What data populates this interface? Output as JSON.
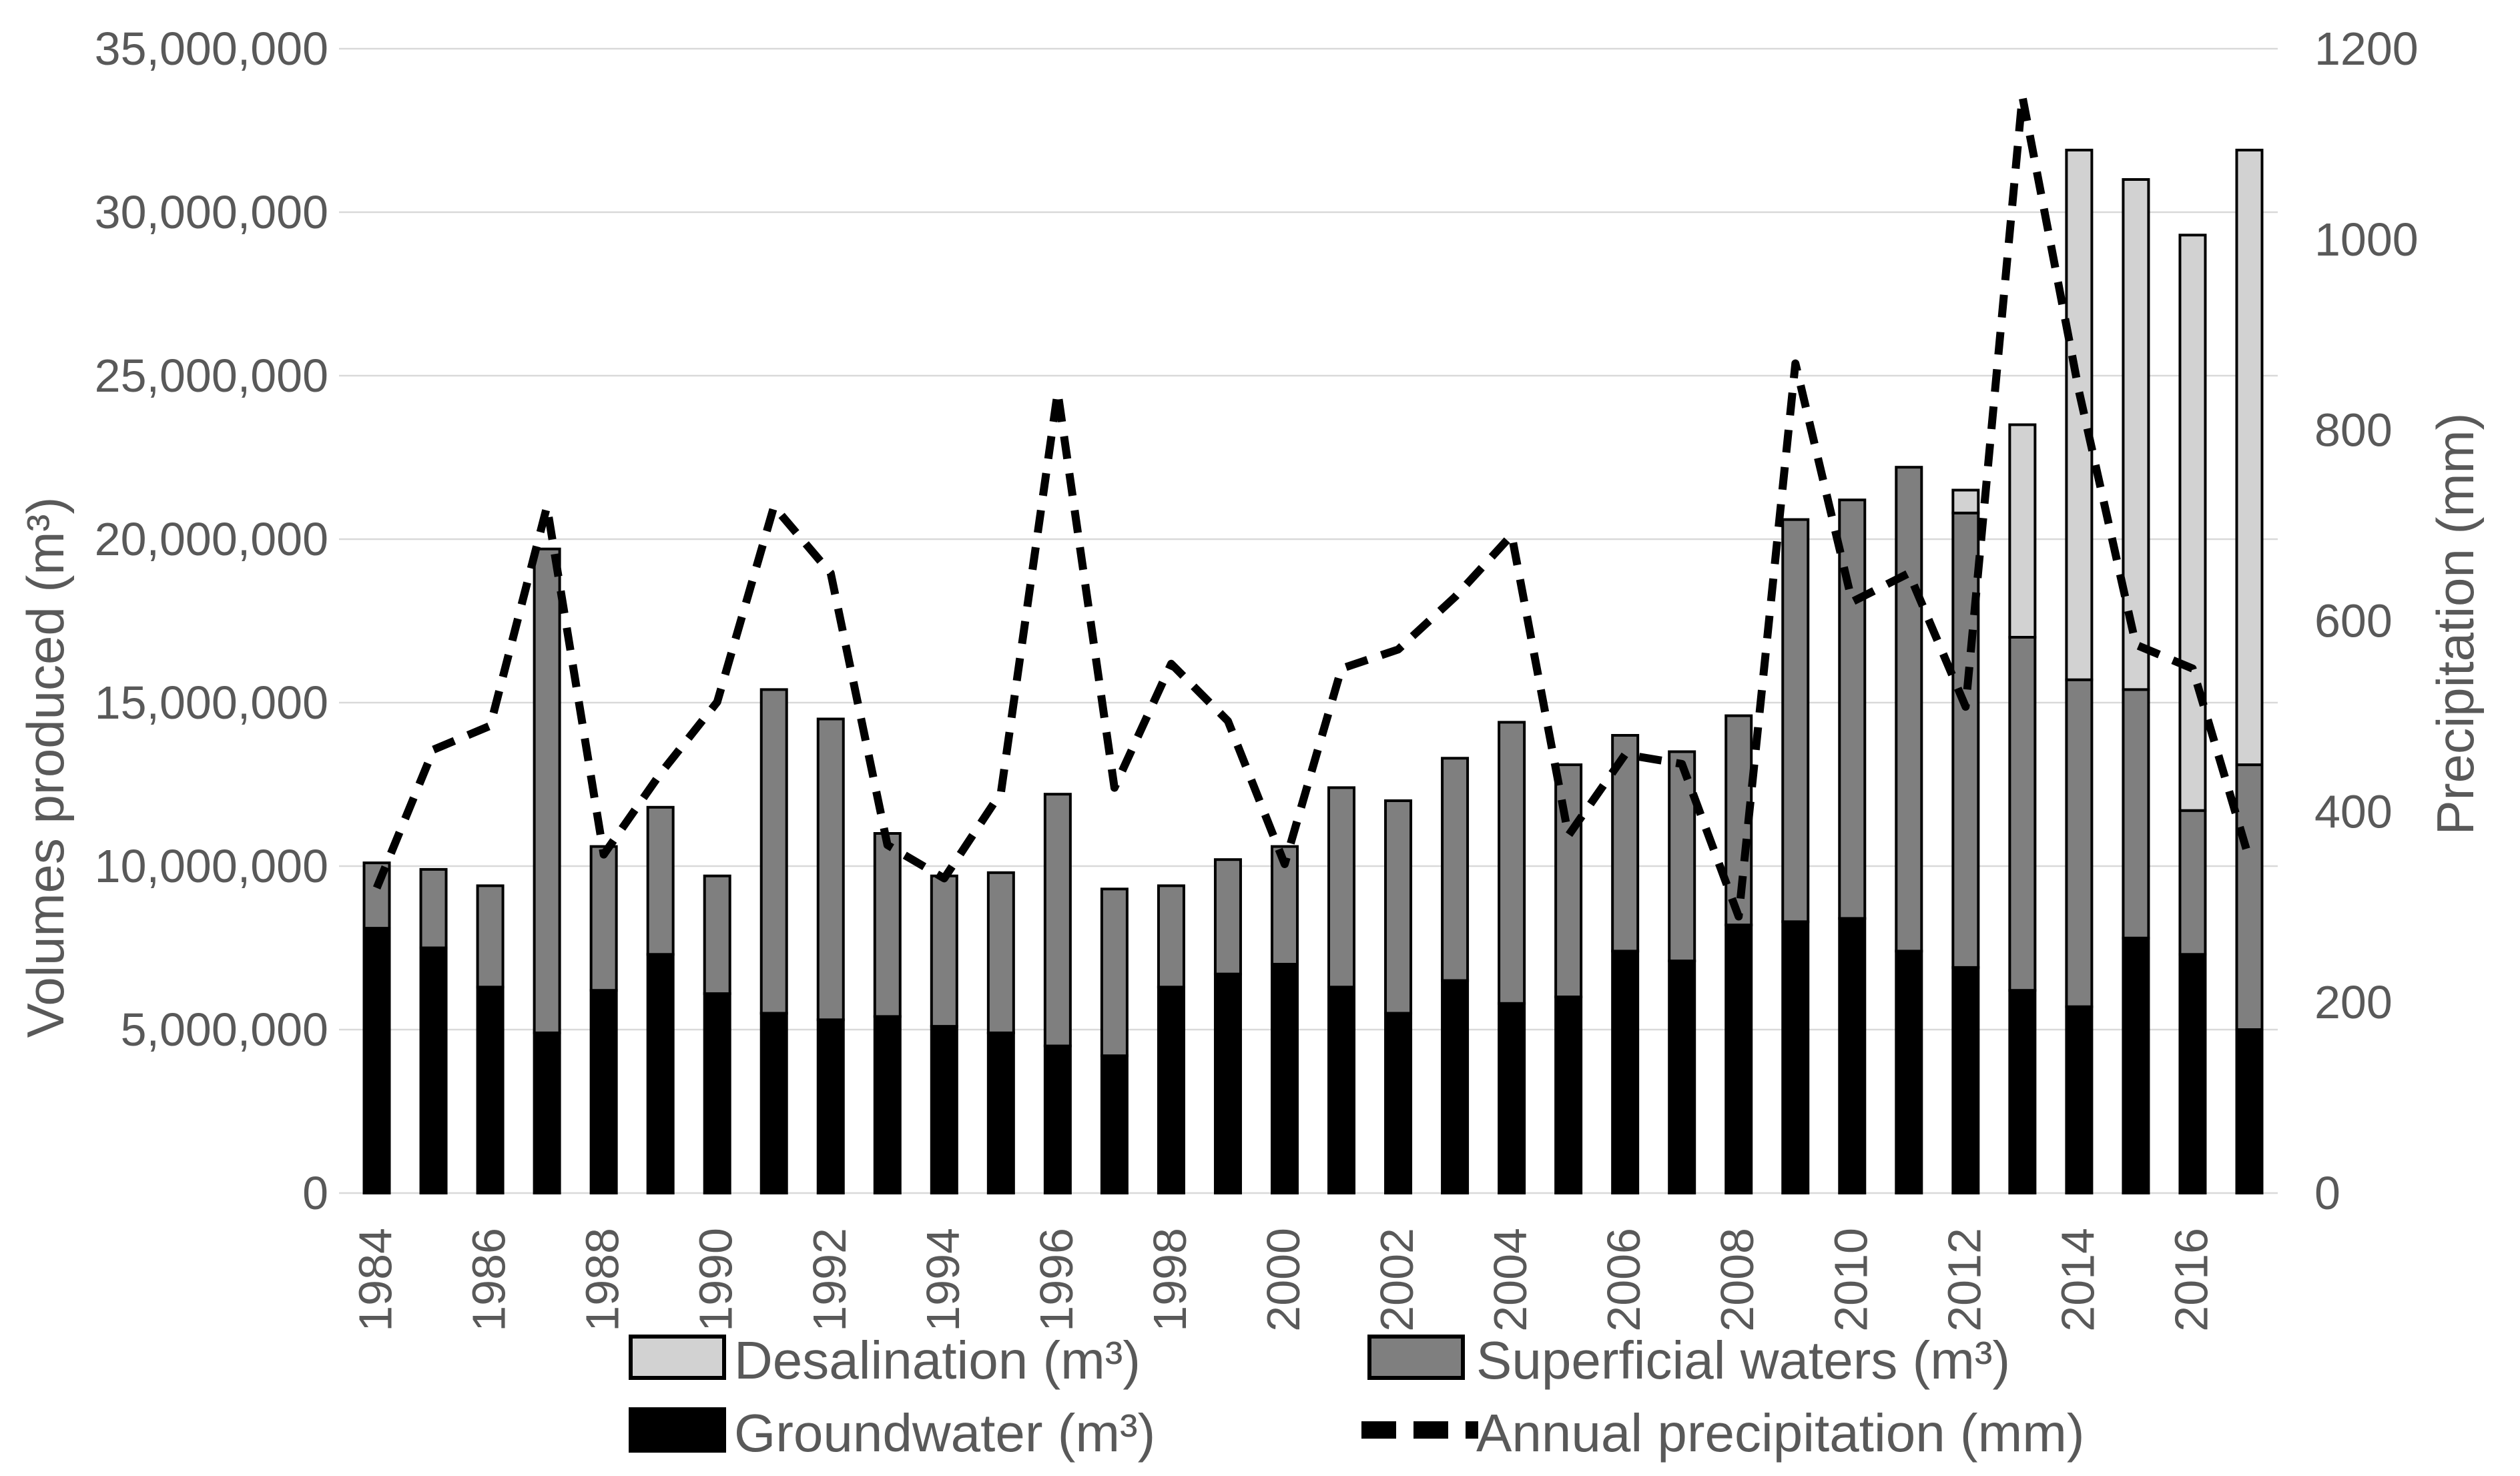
{
  "chart_data": {
    "type": "bar",
    "subtype": "stacked-bars-with-line-overlay",
    "title": "",
    "years": [
      1984,
      1985,
      1986,
      1987,
      1988,
      1989,
      1990,
      1991,
      1992,
      1993,
      1994,
      1995,
      1996,
      1997,
      1998,
      1999,
      2000,
      2001,
      2002,
      2003,
      2004,
      2005,
      2006,
      2007,
      2008,
      2009,
      2010,
      2011,
      2012,
      2013,
      2014,
      2015,
      2016,
      2017
    ],
    "x_tick_labels": [
      "1984",
      "1986",
      "1988",
      "1990",
      "1992",
      "1994",
      "1996",
      "1998",
      "2000",
      "2002",
      "2004",
      "2006",
      "2008",
      "2010",
      "2012",
      "2014",
      "2016"
    ],
    "series": [
      {
        "name": "Groundwater (m³)",
        "type": "bar",
        "axis": "left",
        "color": "#000000",
        "values": [
          8100000,
          7500000,
          6300000,
          4900000,
          6200000,
          7300000,
          6100000,
          5500000,
          5300000,
          5400000,
          5100000,
          4900000,
          4500000,
          4200000,
          6300000,
          6700000,
          7000000,
          6300000,
          5500000,
          6500000,
          5800000,
          6000000,
          7400000,
          7100000,
          8200000,
          8300000,
          8400000,
          7400000,
          6900000,
          6200000,
          5700000,
          7800000,
          7300000,
          5000000
        ]
      },
      {
        "name": "Superficial waters (m³)",
        "type": "bar",
        "axis": "left",
        "color": "#7f7f7f",
        "values": [
          2000000,
          2400000,
          3100000,
          14800000,
          4400000,
          4500000,
          3600000,
          9900000,
          9200000,
          5600000,
          4600000,
          4900000,
          7700000,
          5100000,
          3100000,
          3500000,
          3600000,
          6100000,
          6500000,
          6800000,
          8600000,
          7100000,
          6600000,
          6400000,
          6400000,
          12300000,
          12800000,
          14800000,
          13900000,
          10800000,
          10000000,
          7600000,
          4400000,
          8100000
        ]
      },
      {
        "name": "Desalination  (m³)",
        "type": "bar",
        "axis": "left",
        "color": "#d2d2d2",
        "values": [
          0,
          0,
          0,
          0,
          0,
          0,
          0,
          0,
          0,
          0,
          0,
          0,
          0,
          0,
          0,
          0,
          0,
          0,
          0,
          0,
          0,
          0,
          0,
          0,
          0,
          0,
          0,
          0,
          700000,
          6500000,
          16200000,
          15600000,
          17600000,
          18800000
        ]
      },
      {
        "name": "Annual precipitation (mm)",
        "type": "line",
        "axis": "right",
        "color": "#000000",
        "dashed": true,
        "values": [
          320,
          465,
          490,
          720,
          355,
          440,
          515,
          720,
          650,
          365,
          330,
          420,
          840,
          425,
          555,
          495,
          345,
          550,
          570,
          625,
          690,
          375,
          460,
          450,
          290,
          870,
          620,
          650,
          510,
          1150,
          840,
          575,
          550,
          350
        ]
      }
    ],
    "y_left": {
      "label": "Volumes produced (m³)",
      "min": 0,
      "max": 35000000,
      "tick_step": 5000000,
      "tick_labels": [
        "0",
        "5,000,000",
        "10,000,000",
        "15,000,000",
        "20,000,000",
        "25,000,000",
        "30,000,000",
        "35,000,000"
      ]
    },
    "y_right": {
      "label": "Precipitation (mm)",
      "min": 0,
      "max": 1200,
      "tick_step": 200,
      "tick_labels": [
        "0",
        "200",
        "400",
        "600",
        "800",
        "1000",
        "1200"
      ]
    },
    "legend": {
      "items": [
        {
          "label": "Desalination  (m³)",
          "swatch": "desalination-light-gray"
        },
        {
          "label": "Superficial waters (m³)",
          "swatch": "superficial-gray"
        },
        {
          "label": "Groundwater (m³)",
          "swatch": "groundwater-black"
        },
        {
          "label": "Annual precipitation (mm)",
          "swatch": "dashed-line"
        }
      ],
      "position": "bottom"
    },
    "grid": "horizontal-light-gray",
    "colors": {
      "grid": "#d9d9d9",
      "text": "#595959",
      "bar_border": "#000000"
    }
  }
}
